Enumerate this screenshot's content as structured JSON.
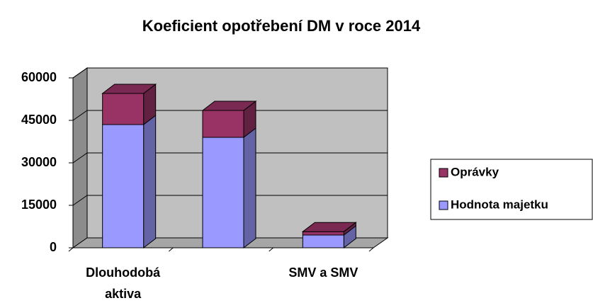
{
  "chart_data": {
    "type": "bar3d_stacked",
    "title": "Koeficient opotřebení DM v roce 2014",
    "categories": [
      "Dlouhodobá aktiva",
      null,
      "SMV a SMV"
    ],
    "series": [
      {
        "name": "Hodnota majetku",
        "color": "#9999ff",
        "values": [
          43500,
          39000,
          4500
        ]
      },
      {
        "name": "Oprávky",
        "color": "#993366",
        "values": [
          11000,
          9500,
          1200
        ]
      }
    ],
    "ylim": [
      0,
      60000
    ],
    "yticks": [
      0,
      15000,
      30000,
      45000,
      60000
    ],
    "grid": true,
    "legend": "right"
  }
}
